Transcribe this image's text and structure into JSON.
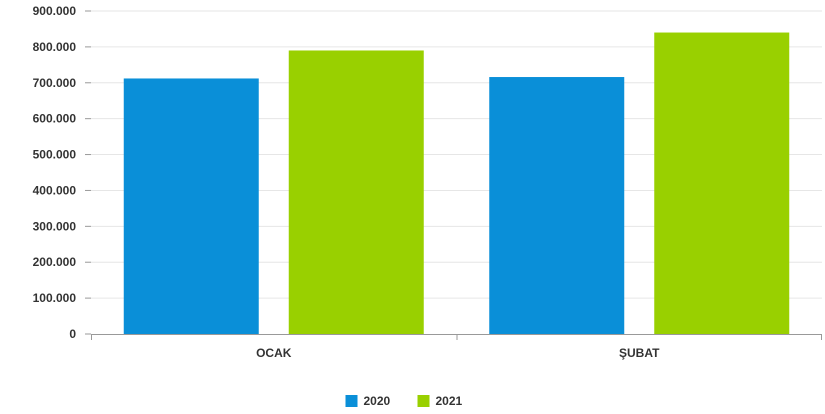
{
  "chart_data": {
    "type": "bar",
    "categories": [
      "OCAK",
      "ŞUBAT"
    ],
    "series": [
      {
        "name": "2020",
        "color": "#0a8fd8",
        "values": [
          712000,
          716000
        ]
      },
      {
        "name": "2021",
        "color": "#99d000",
        "values": [
          790000,
          840000
        ]
      }
    ],
    "ylim": [
      0,
      900000
    ],
    "yticks": [
      "0",
      "100.000",
      "200.000",
      "300.000",
      "400.000",
      "500.000",
      "600.000",
      "700.000",
      "800.000",
      "900.000"
    ],
    "grid": true,
    "legend_position": "bottom-center",
    "xlabel": "",
    "ylabel": ""
  }
}
